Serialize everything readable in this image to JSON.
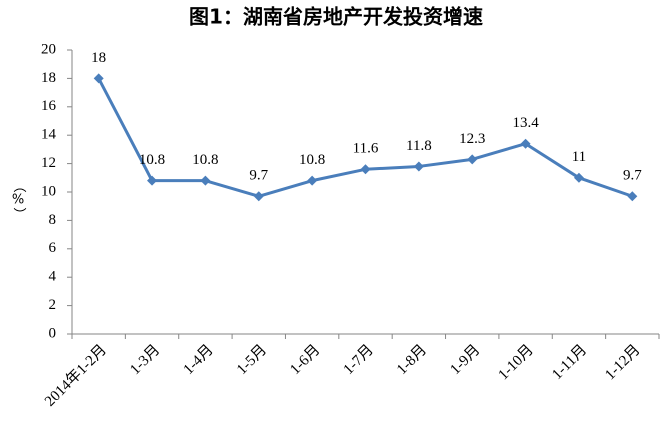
{
  "chart_data": {
    "type": "line",
    "title": "图1：湖南省房地产开发投资增速",
    "y_label": "（%）",
    "categories": [
      "2014年1-2月",
      "1-3月",
      "1-4月",
      "1-5月",
      "1-6月",
      "1-7月",
      "1-8月",
      "1-9月",
      "1-10月",
      "1-11月",
      "1-12月"
    ],
    "series": [
      {
        "name": "增速",
        "color": "#4a7ebb",
        "values": [
          18,
          10.8,
          10.8,
          9.7,
          10.8,
          11.6,
          11.8,
          12.3,
          13.4,
          11,
          9.7
        ]
      }
    ],
    "ylim": [
      0,
      20
    ],
    "yticks": [
      0,
      2,
      4,
      6,
      8,
      10,
      12,
      14,
      16,
      18,
      20
    ],
    "grid": false
  }
}
